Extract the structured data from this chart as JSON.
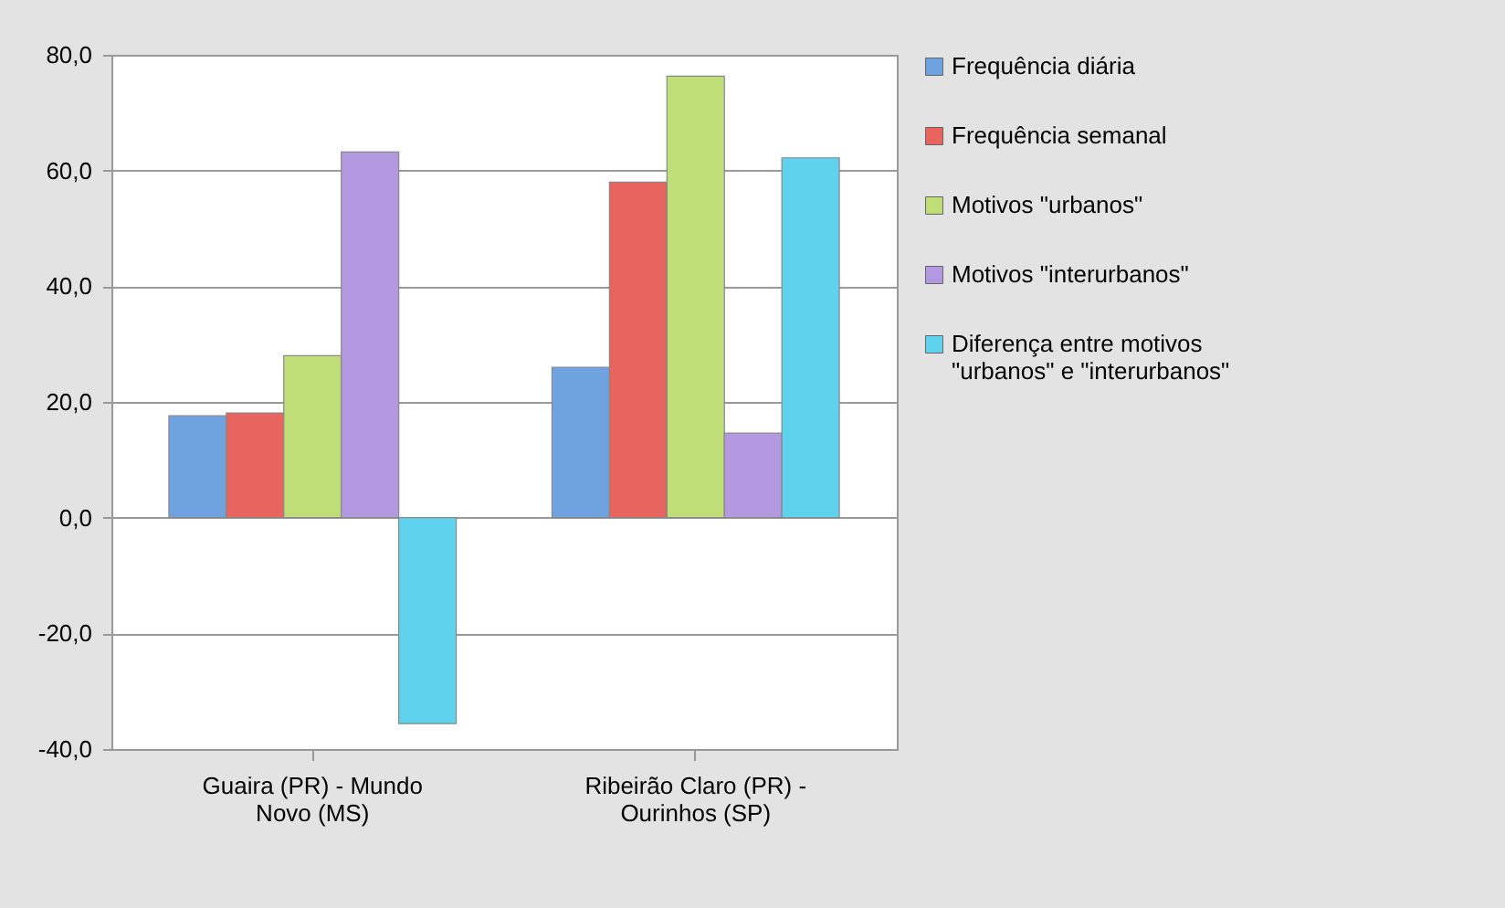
{
  "chart_data": {
    "type": "bar",
    "categories": [
      "Guaira (PR) - Mundo Novo (MS)",
      "Ribeirão Claro (PR) - Ourinhos (SP)"
    ],
    "series": [
      {
        "name": "Frequência diária",
        "color": "#6fa3e0",
        "values": [
          17.6,
          26.0
        ]
      },
      {
        "name": "Frequência semanal",
        "color": "#e8645e",
        "values": [
          18.1,
          58.0
        ]
      },
      {
        "name": "Motivos \"urbanos\"",
        "color": "#bfde78",
        "values": [
          28.0,
          76.3
        ]
      },
      {
        "name": "Motivos \"interurbanos\"",
        "color": "#b39ae0",
        "values": [
          63.2,
          14.6
        ]
      },
      {
        "name": "Diferença entre motivos \"urbanos\" e \"interurbanos\"",
        "color": "#5fd3ee",
        "values": [
          -35.6,
          62.2
        ]
      }
    ],
    "ylim": [
      -40,
      80
    ],
    "yticks": [
      {
        "value": -40,
        "label": "-40,0"
      },
      {
        "value": -20,
        "label": "-20,0"
      },
      {
        "value": 0,
        "label": "0,0"
      },
      {
        "value": 20,
        "label": "20,0"
      },
      {
        "value": 40,
        "label": "40,0"
      },
      {
        "value": 60,
        "label": "60,0"
      },
      {
        "value": 80,
        "label": "80,0"
      }
    ],
    "grid": "y",
    "legend": "right"
  }
}
